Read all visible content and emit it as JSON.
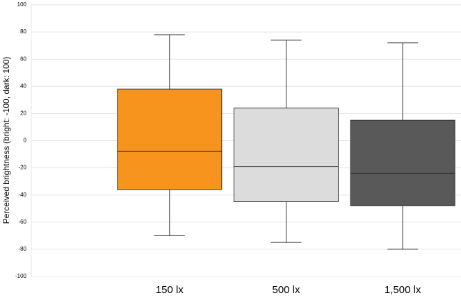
{
  "chart_data": {
    "type": "box",
    "y_label": "Perceived brightness (bright: -100, dark: 100)",
    "categories": [
      "150 lx",
      "500 lx",
      "1,500 lx"
    ],
    "boxes": [
      {
        "min": -70,
        "q1": -36,
        "median": -8,
        "q3": 38,
        "max": 78,
        "color": "#f7941d"
      },
      {
        "min": -75,
        "q1": -45,
        "median": -19,
        "q3": 24,
        "max": 74,
        "color": "#dcdcdc"
      },
      {
        "min": -80,
        "q1": -48,
        "median": -24,
        "q3": 15,
        "max": 72,
        "color": "#595959"
      }
    ],
    "ylim": [
      -100,
      100
    ],
    "yticks": [
      -100,
      -80,
      -60,
      -40,
      -20,
      0,
      20,
      40,
      60,
      80,
      100
    ],
    "grid": true
  }
}
